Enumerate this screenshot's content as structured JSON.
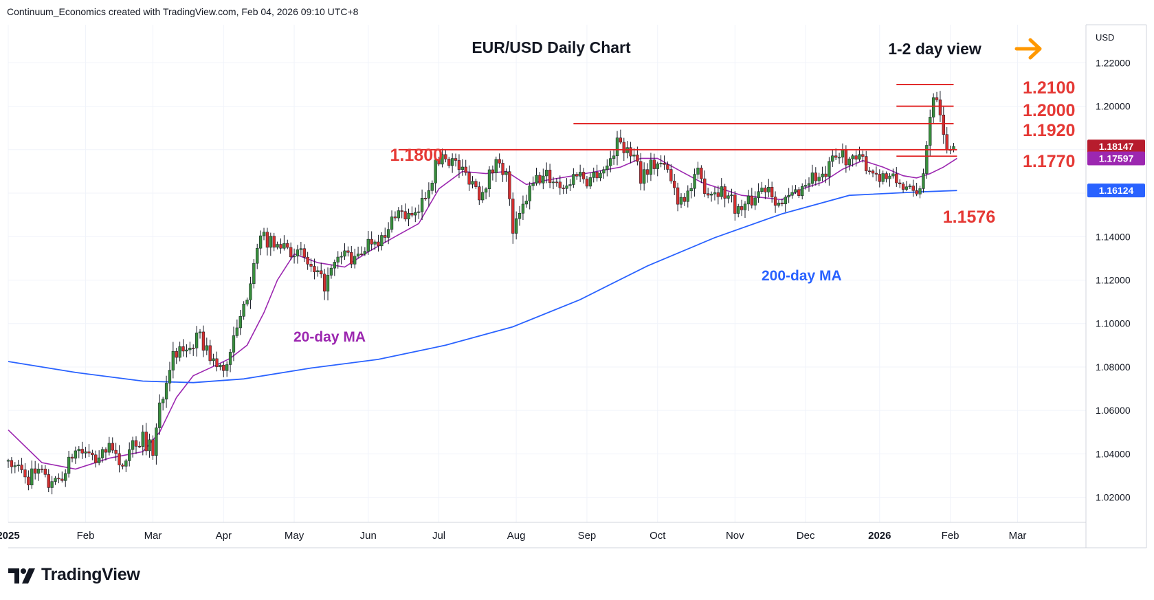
{
  "header": {
    "attribution": "Continuum_Economics created with TradingView.com, Feb 04, 2026 09:10 UTC+8"
  },
  "branding": {
    "logo_text": "TradingView",
    "logo_icon": "tradingview-logo-icon"
  },
  "chart_data": {
    "type": "candlestick",
    "title": "EUR/USD Daily Chart",
    "view_label": "1-2 day view",
    "view_icon": "arrow-right-icon",
    "currency": "USD",
    "ylim": [
      1.0085,
      1.2375
    ],
    "grid": true,
    "y_ticks": [
      "1.02000",
      "1.04000",
      "1.06000",
      "1.08000",
      "1.10000",
      "1.12000",
      "1.14000",
      "1.16000",
      "1.18000",
      "1.20000",
      "1.22000"
    ],
    "x_ticks": [
      {
        "label": "2025",
        "i": 0,
        "bold": true
      },
      {
        "label": "Feb",
        "i": 23
      },
      {
        "label": "Mar",
        "i": 43
      },
      {
        "label": "Apr",
        "i": 64
      },
      {
        "label": "May",
        "i": 85
      },
      {
        "label": "Jun",
        "i": 107
      },
      {
        "label": "Jul",
        "i": 128
      },
      {
        "label": "Aug",
        "i": 151
      },
      {
        "label": "Sep",
        "i": 172
      },
      {
        "label": "Oct",
        "i": 193
      },
      {
        "label": "Nov",
        "i": 216
      },
      {
        "label": "Dec",
        "i": 237
      },
      {
        "label": "2026",
        "i": 259,
        "bold": true
      },
      {
        "label": "Feb",
        "i": 280
      },
      {
        "label": "Mar",
        "i": 300
      }
    ],
    "key_points": [
      {
        "i": 0,
        "p": 1.037
      },
      {
        "i": 6,
        "p": 1.029
      },
      {
        "i": 9,
        "p": 1.032
      },
      {
        "i": 13,
        "p": 1.024
      },
      {
        "i": 17,
        "p": 1.032
      },
      {
        "i": 20,
        "p": 1.042
      },
      {
        "i": 23,
        "p": 1.04
      },
      {
        "i": 27,
        "p": 1.036
      },
      {
        "i": 30,
        "p": 1.047
      },
      {
        "i": 33,
        "p": 1.032
      },
      {
        "i": 36,
        "p": 1.044
      },
      {
        "i": 40,
        "p": 1.047
      },
      {
        "i": 43,
        "p": 1.041
      },
      {
        "i": 45,
        "p": 1.062
      },
      {
        "i": 48,
        "p": 1.082
      },
      {
        "i": 52,
        "p": 1.088
      },
      {
        "i": 57,
        "p": 1.093
      },
      {
        "i": 62,
        "p": 1.08
      },
      {
        "i": 64,
        "p": 1.078
      },
      {
        "i": 67,
        "p": 1.092
      },
      {
        "i": 70,
        "p": 1.106
      },
      {
        "i": 73,
        "p": 1.13
      },
      {
        "i": 76,
        "p": 1.14
      },
      {
        "i": 79,
        "p": 1.135
      },
      {
        "i": 82,
        "p": 1.137
      },
      {
        "i": 85,
        "p": 1.133
      },
      {
        "i": 88,
        "p": 1.13
      },
      {
        "i": 91,
        "p": 1.122
      },
      {
        "i": 94,
        "p": 1.118
      },
      {
        "i": 97,
        "p": 1.126
      },
      {
        "i": 100,
        "p": 1.133
      },
      {
        "i": 103,
        "p": 1.128
      },
      {
        "i": 106,
        "p": 1.136
      },
      {
        "i": 109,
        "p": 1.14
      },
      {
        "i": 112,
        "p": 1.138
      },
      {
        "i": 115,
        "p": 1.152
      },
      {
        "i": 118,
        "p": 1.15
      },
      {
        "i": 121,
        "p": 1.148
      },
      {
        "i": 124,
        "p": 1.16
      },
      {
        "i": 127,
        "p": 1.172
      },
      {
        "i": 129,
        "p": 1.178
      },
      {
        "i": 132,
        "p": 1.175
      },
      {
        "i": 135,
        "p": 1.17
      },
      {
        "i": 138,
        "p": 1.166
      },
      {
        "i": 140,
        "p": 1.16
      },
      {
        "i": 143,
        "p": 1.168
      },
      {
        "i": 146,
        "p": 1.176
      },
      {
        "i": 148,
        "p": 1.168
      },
      {
        "i": 149,
        "p": 1.155
      },
      {
        "i": 150,
        "p": 1.143
      },
      {
        "i": 152,
        "p": 1.148
      },
      {
        "i": 154,
        "p": 1.158
      },
      {
        "i": 157,
        "p": 1.166
      },
      {
        "i": 160,
        "p": 1.168
      },
      {
        "i": 163,
        "p": 1.165
      },
      {
        "i": 166,
        "p": 1.163
      },
      {
        "i": 169,
        "p": 1.17
      },
      {
        "i": 172,
        "p": 1.166
      },
      {
        "i": 175,
        "p": 1.17
      },
      {
        "i": 178,
        "p": 1.172
      },
      {
        "i": 180,
        "p": 1.18
      },
      {
        "i": 182,
        "p": 1.185
      },
      {
        "i": 184,
        "p": 1.178
      },
      {
        "i": 186,
        "p": 1.18
      },
      {
        "i": 188,
        "p": 1.168
      },
      {
        "i": 190,
        "p": 1.172
      },
      {
        "i": 193,
        "p": 1.174
      },
      {
        "i": 196,
        "p": 1.17
      },
      {
        "i": 199,
        "p": 1.158
      },
      {
        "i": 202,
        "p": 1.16
      },
      {
        "i": 205,
        "p": 1.168
      },
      {
        "i": 208,
        "p": 1.161
      },
      {
        "i": 211,
        "p": 1.162
      },
      {
        "i": 214,
        "p": 1.159
      },
      {
        "i": 217,
        "p": 1.152
      },
      {
        "i": 220,
        "p": 1.155
      },
      {
        "i": 223,
        "p": 1.161
      },
      {
        "i": 226,
        "p": 1.164
      },
      {
        "i": 228,
        "p": 1.158
      },
      {
        "i": 230,
        "p": 1.154
      },
      {
        "i": 233,
        "p": 1.159
      },
      {
        "i": 236,
        "p": 1.163
      },
      {
        "i": 239,
        "p": 1.168
      },
      {
        "i": 242,
        "p": 1.166
      },
      {
        "i": 245,
        "p": 1.174
      },
      {
        "i": 248,
        "p": 1.178
      },
      {
        "i": 251,
        "p": 1.174
      },
      {
        "i": 254,
        "p": 1.175
      },
      {
        "i": 257,
        "p": 1.17
      },
      {
        "i": 260,
        "p": 1.168
      },
      {
        "i": 263,
        "p": 1.166
      },
      {
        "i": 266,
        "p": 1.164
      },
      {
        "i": 268,
        "p": 1.16
      },
      {
        "i": 270,
        "p": 1.159
      },
      {
        "i": 272,
        "p": 1.169
      },
      {
        "i": 273,
        "p": 1.182
      },
      {
        "i": 274,
        "p": 1.195
      },
      {
        "i": 275,
        "p": 1.204
      },
      {
        "i": 276,
        "p": 1.203
      },
      {
        "i": 277,
        "p": 1.196
      },
      {
        "i": 278,
        "p": 1.187
      },
      {
        "i": 279,
        "p": 1.18
      },
      {
        "i": 280,
        "p": 1.18
      },
      {
        "i": 281,
        "p": 1.1815
      }
    ],
    "series": [
      {
        "name": "20-day MA",
        "color": "#9c27b0",
        "points": [
          {
            "i": 0,
            "p": 1.051
          },
          {
            "i": 10,
            "p": 1.036
          },
          {
            "i": 20,
            "p": 1.033
          },
          {
            "i": 30,
            "p": 1.038
          },
          {
            "i": 40,
            "p": 1.041
          },
          {
            "i": 45,
            "p": 1.05
          },
          {
            "i": 50,
            "p": 1.066
          },
          {
            "i": 55,
            "p": 1.076
          },
          {
            "i": 62,
            "p": 1.081
          },
          {
            "i": 66,
            "p": 1.084
          },
          {
            "i": 71,
            "p": 1.09
          },
          {
            "i": 76,
            "p": 1.105
          },
          {
            "i": 80,
            "p": 1.12
          },
          {
            "i": 85,
            "p": 1.132
          },
          {
            "i": 92,
            "p": 1.128
          },
          {
            "i": 100,
            "p": 1.126
          },
          {
            "i": 107,
            "p": 1.133
          },
          {
            "i": 115,
            "p": 1.14
          },
          {
            "i": 122,
            "p": 1.146
          },
          {
            "i": 128,
            "p": 1.162
          },
          {
            "i": 135,
            "p": 1.17
          },
          {
            "i": 142,
            "p": 1.169
          },
          {
            "i": 148,
            "p": 1.17
          },
          {
            "i": 154,
            "p": 1.164
          },
          {
            "i": 160,
            "p": 1.166
          },
          {
            "i": 168,
            "p": 1.168
          },
          {
            "i": 175,
            "p": 1.17
          },
          {
            "i": 182,
            "p": 1.172
          },
          {
            "i": 188,
            "p": 1.176
          },
          {
            "i": 193,
            "p": 1.176
          },
          {
            "i": 200,
            "p": 1.17
          },
          {
            "i": 206,
            "p": 1.165
          },
          {
            "i": 212,
            "p": 1.162
          },
          {
            "i": 218,
            "p": 1.159
          },
          {
            "i": 224,
            "p": 1.158
          },
          {
            "i": 230,
            "p": 1.157
          },
          {
            "i": 236,
            "p": 1.162
          },
          {
            "i": 242,
            "p": 1.165
          },
          {
            "i": 248,
            "p": 1.171
          },
          {
            "i": 254,
            "p": 1.175
          },
          {
            "i": 260,
            "p": 1.172
          },
          {
            "i": 266,
            "p": 1.168
          },
          {
            "i": 270,
            "p": 1.167
          },
          {
            "i": 274,
            "p": 1.169
          },
          {
            "i": 278,
            "p": 1.172
          },
          {
            "i": 282,
            "p": 1.176
          }
        ]
      },
      {
        "name": "200-day MA",
        "color": "#2962ff",
        "points": [
          {
            "i": 0,
            "p": 1.0825
          },
          {
            "i": 20,
            "p": 1.0775
          },
          {
            "i": 40,
            "p": 1.0735
          },
          {
            "i": 55,
            "p": 1.0728
          },
          {
            "i": 70,
            "p": 1.0745
          },
          {
            "i": 90,
            "p": 1.0795
          },
          {
            "i": 110,
            "p": 1.0835
          },
          {
            "i": 130,
            "p": 1.09
          },
          {
            "i": 150,
            "p": 1.0985
          },
          {
            "i": 170,
            "p": 1.111
          },
          {
            "i": 190,
            "p": 1.1265
          },
          {
            "i": 210,
            "p": 1.1395
          },
          {
            "i": 230,
            "p": 1.1505
          },
          {
            "i": 250,
            "p": 1.159
          },
          {
            "i": 270,
            "p": 1.1605
          },
          {
            "i": 282,
            "p": 1.1612
          }
        ]
      }
    ],
    "levels": [
      {
        "label": "1.2100",
        "price": 1.21,
        "from_i": 264,
        "to_i": 281,
        "label_side": "right"
      },
      {
        "label": "1.2000",
        "price": 1.2,
        "from_i": 264,
        "to_i": 281,
        "label_side": "right"
      },
      {
        "label": "1.1920",
        "price": 1.192,
        "from_i": 168,
        "to_i": 281,
        "label_side": "right"
      },
      {
        "label": "1.1800",
        "price": 1.18,
        "from_i": 116,
        "to_i": 282,
        "label_side": "left"
      },
      {
        "label": "1.1770",
        "price": 1.177,
        "from_i": 264,
        "to_i": 282,
        "label_side": "right"
      },
      {
        "label": "1.1576",
        "price": 1.1576,
        "from_i": 0,
        "to_i": 0,
        "label_side": "below"
      }
    ],
    "annotations": [
      {
        "text": "20-day MA",
        "color": "#9c27b0"
      },
      {
        "text": "200-day MA",
        "color": "#2962ff"
      }
    ],
    "price_tags": [
      {
        "text": "1.18147",
        "value": 1.18147,
        "bg": "#b71c2d",
        "kind": "last-price"
      },
      {
        "text": "1.17597",
        "value": 1.17597,
        "bg": "#9c27b0",
        "kind": "20-day-ma"
      },
      {
        "text": "1.16124",
        "value": 1.16124,
        "bg": "#2962ff",
        "kind": "200-day-ma"
      }
    ],
    "colors": {
      "up": "#388e3c",
      "down": "#d32f2f",
      "level": "#e01f1f",
      "level_text": "#e53935",
      "arrow": "#ff9800",
      "grid": "#f0f3fa"
    }
  }
}
